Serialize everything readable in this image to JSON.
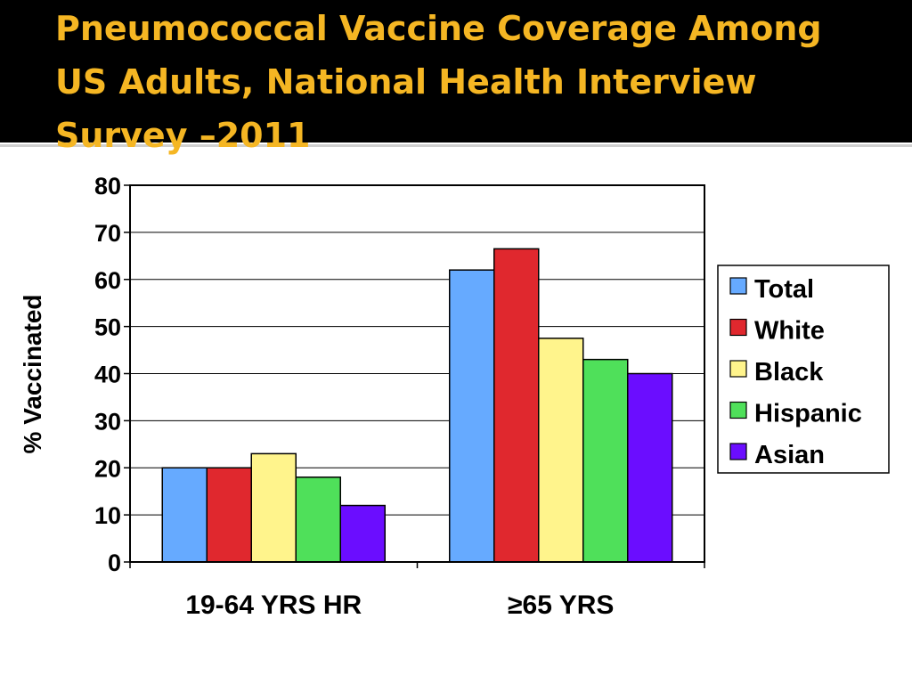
{
  "slide": {
    "title": "Pneumococcal Vaccine Coverage Among\nUS Adults, National Health Interview\nSurvey –2011",
    "title_color": "#f5b623",
    "band_color": "#000000"
  },
  "chart_data": {
    "type": "bar",
    "categories": [
      "19-64 YRS HR",
      "≥65 YRS"
    ],
    "series": [
      {
        "name": "Total",
        "color": "#66aaff",
        "values": [
          20,
          62
        ]
      },
      {
        "name": "White",
        "color": "#e0282e",
        "values": [
          20,
          66.5
        ]
      },
      {
        "name": "Black",
        "color": "#fff48c",
        "values": [
          23,
          47.5
        ]
      },
      {
        "name": "Hispanic",
        "color": "#4fe05a",
        "values": [
          18,
          43
        ]
      },
      {
        "name": "Asian",
        "color": "#6b0dff",
        "values": [
          12,
          40
        ]
      }
    ],
    "ylabel": "% Vaccinated",
    "xlabel": "",
    "ylim": [
      0,
      80
    ],
    "yticks": [
      "0",
      "10",
      "20",
      "30",
      "40",
      "50",
      "60",
      "70",
      "80"
    ],
    "grid": true,
    "legend_position": "right"
  }
}
